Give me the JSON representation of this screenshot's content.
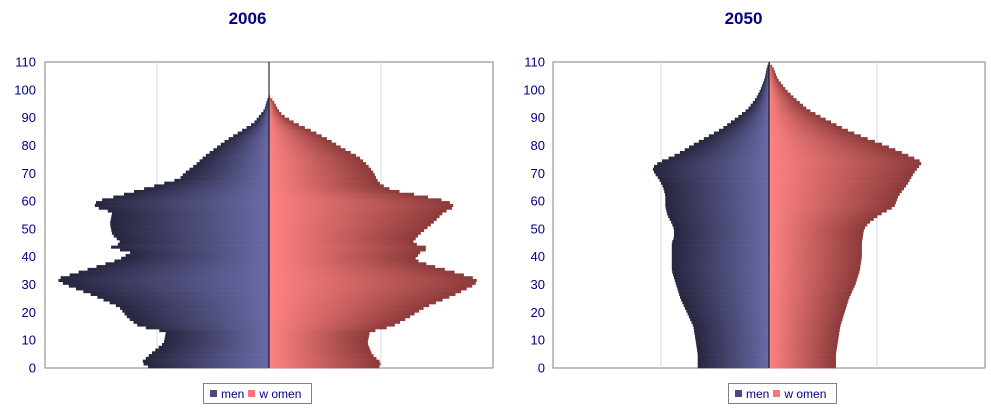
{
  "chart_data": [
    {
      "type": "bar",
      "subtype": "population-pyramid",
      "title": "2006",
      "y_ticks": [
        0,
        10,
        20,
        30,
        40,
        50,
        60,
        70,
        80,
        90,
        100,
        110
      ],
      "ylim": [
        0,
        110
      ],
      "xlim": [
        -100,
        100
      ],
      "grid": "vertical",
      "legend_position": "bottom",
      "series": [
        {
          "name": "men",
          "color": "#4a4a7c",
          "profile": [
            [
              0,
              53
            ],
            [
              2,
              57
            ],
            [
              5,
              53
            ],
            [
              9,
              47
            ],
            [
              13,
              46
            ],
            [
              15,
              58
            ],
            [
              18,
              63
            ],
            [
              22,
              67
            ],
            [
              26,
              78
            ],
            [
              30,
              91
            ],
            [
              32,
              95
            ],
            [
              34,
              87
            ],
            [
              37,
              75
            ],
            [
              39,
              67
            ],
            [
              42,
              61
            ],
            [
              43,
              72
            ],
            [
              45,
              66
            ],
            [
              48,
              70
            ],
            [
              52,
              71
            ],
            [
              56,
              70
            ],
            [
              58,
              78
            ],
            [
              60,
              77
            ],
            [
              62,
              67
            ],
            [
              64,
              58
            ],
            [
              66,
              49
            ],
            [
              68,
              40
            ],
            [
              70,
              38
            ],
            [
              73,
              33
            ],
            [
              76,
              29
            ],
            [
              79,
              24
            ],
            [
              82,
              19
            ],
            [
              85,
              13
            ],
            [
              88,
              7
            ],
            [
              91,
              4
            ],
            [
              93,
              2
            ],
            [
              96,
              1
            ],
            [
              98,
              0
            ]
          ]
        },
        {
          "name": "w omen",
          "color": "#f07878",
          "profile": [
            [
              0,
              49
            ],
            [
              2,
              50
            ],
            [
              5,
              46
            ],
            [
              9,
              44
            ],
            [
              13,
              45
            ],
            [
              15,
              55
            ],
            [
              18,
              62
            ],
            [
              22,
              70
            ],
            [
              26,
              82
            ],
            [
              30,
              92
            ],
            [
              32,
              93
            ],
            [
              34,
              85
            ],
            [
              37,
              72
            ],
            [
              39,
              65
            ],
            [
              42,
              68
            ],
            [
              43,
              72
            ],
            [
              45,
              64
            ],
            [
              48,
              67
            ],
            [
              52,
              73
            ],
            [
              56,
              78
            ],
            [
              58,
              83
            ],
            [
              60,
              80
            ],
            [
              62,
              68
            ],
            [
              64,
              55
            ],
            [
              66,
              50
            ],
            [
              68,
              48
            ],
            [
              70,
              47
            ],
            [
              73,
              44
            ],
            [
              76,
              40
            ],
            [
              79,
              33
            ],
            [
              82,
              27
            ],
            [
              85,
              20
            ],
            [
              88,
              12
            ],
            [
              91,
              6
            ],
            [
              93,
              4
            ],
            [
              96,
              2
            ],
            [
              98,
              0
            ]
          ]
        }
      ]
    },
    {
      "type": "bar",
      "subtype": "population-pyramid",
      "title": "2050",
      "y_ticks": [
        0,
        10,
        20,
        30,
        40,
        50,
        60,
        70,
        80,
        90,
        100,
        110
      ],
      "ylim": [
        0,
        110
      ],
      "xlim": [
        -100,
        100
      ],
      "grid": "vertical",
      "legend_position": "bottom",
      "series": [
        {
          "name": "men",
          "color": "#4a4a7c",
          "profile": [
            [
              0,
              33
            ],
            [
              5,
              33
            ],
            [
              10,
              34
            ],
            [
              15,
              35
            ],
            [
              20,
              38
            ],
            [
              25,
              41
            ],
            [
              30,
              43
            ],
            [
              35,
              45
            ],
            [
              40,
              45
            ],
            [
              45,
              45
            ],
            [
              47,
              44
            ],
            [
              50,
              44
            ],
            [
              52,
              45
            ],
            [
              55,
              47
            ],
            [
              58,
              48
            ],
            [
              62,
              48
            ],
            [
              65,
              49
            ],
            [
              68,
              51
            ],
            [
              70,
              53
            ],
            [
              72,
              54
            ],
            [
              74,
              51
            ],
            [
              76,
              45
            ],
            [
              78,
              40
            ],
            [
              80,
              36
            ],
            [
              83,
              29
            ],
            [
              86,
              22
            ],
            [
              90,
              15
            ],
            [
              93,
              10
            ],
            [
              97,
              6
            ],
            [
              100,
              4
            ],
            [
              104,
              2
            ],
            [
              108,
              1
            ],
            [
              110,
              0
            ]
          ]
        },
        {
          "name": "w omen",
          "color": "#f07878",
          "profile": [
            [
              0,
              31
            ],
            [
              5,
              31
            ],
            [
              10,
              32
            ],
            [
              15,
              33
            ],
            [
              20,
              35
            ],
            [
              25,
              37
            ],
            [
              30,
              40
            ],
            [
              35,
              42
            ],
            [
              40,
              43
            ],
            [
              45,
              43
            ],
            [
              50,
              44
            ],
            [
              52,
              46
            ],
            [
              55,
              51
            ],
            [
              58,
              58
            ],
            [
              62,
              60
            ],
            [
              66,
              64
            ],
            [
              70,
              67
            ],
            [
              72,
              69
            ],
            [
              74,
              71
            ],
            [
              76,
              66
            ],
            [
              78,
              60
            ],
            [
              80,
              54
            ],
            [
              83,
              44
            ],
            [
              86,
              35
            ],
            [
              90,
              25
            ],
            [
              93,
              18
            ],
            [
              97,
              12
            ],
            [
              100,
              8
            ],
            [
              104,
              4
            ],
            [
              108,
              2
            ],
            [
              110,
              0
            ]
          ]
        }
      ]
    }
  ]
}
